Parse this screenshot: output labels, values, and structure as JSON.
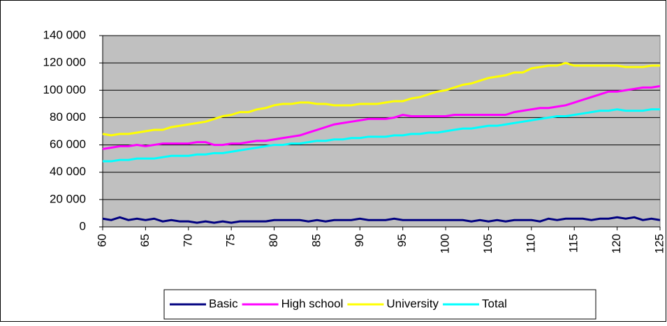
{
  "chart_data": {
    "type": "line",
    "x": [
      60,
      61,
      62,
      63,
      64,
      65,
      66,
      67,
      68,
      69,
      70,
      71,
      72,
      73,
      74,
      75,
      76,
      77,
      78,
      79,
      80,
      81,
      82,
      83,
      84,
      85,
      86,
      87,
      88,
      89,
      90,
      91,
      92,
      93,
      94,
      95,
      96,
      97,
      98,
      99,
      100,
      101,
      102,
      103,
      104,
      105,
      106,
      107,
      108,
      109,
      110,
      111,
      112,
      113,
      114,
      115,
      116,
      117,
      118,
      119,
      120,
      121,
      122,
      123,
      124,
      125
    ],
    "xlim": [
      60,
      125
    ],
    "xticks": [
      60,
      65,
      70,
      75,
      80,
      85,
      90,
      95,
      100,
      105,
      110,
      115,
      120,
      125
    ],
    "ylim": [
      0,
      140000
    ],
    "yticks": [
      0,
      {
        "value": 20000,
        "label": "20 000"
      },
      {
        "value": 40000,
        "label": "40 000"
      },
      {
        "value": 60000,
        "label": "60 000"
      },
      {
        "value": 80000,
        "label": "80 000"
      },
      {
        "value": 100000,
        "label": "100 000"
      },
      {
        "value": 120000,
        "label": "120 000"
      },
      {
        "value": 140000,
        "label": "140 000"
      }
    ],
    "grid": true,
    "legend": "bottom",
    "background": "#c0c0c0",
    "series": [
      {
        "name": "Basic",
        "color": "#000080",
        "values": [
          6000,
          5000,
          7000,
          5000,
          6000,
          5000,
          6000,
          4000,
          5000,
          4000,
          4000,
          3000,
          4000,
          3000,
          4000,
          3000,
          4000,
          4000,
          4000,
          4000,
          5000,
          5000,
          5000,
          5000,
          4000,
          5000,
          4000,
          5000,
          5000,
          5000,
          6000,
          5000,
          5000,
          5000,
          6000,
          5000,
          5000,
          5000,
          5000,
          5000,
          5000,
          5000,
          5000,
          4000,
          5000,
          4000,
          5000,
          4000,
          5000,
          5000,
          5000,
          4000,
          6000,
          5000,
          6000,
          6000,
          6000,
          5000,
          6000,
          6000,
          7000,
          6000,
          7000,
          5000,
          6000,
          5000
        ]
      },
      {
        "name": "High school",
        "color": "#ff00ff",
        "values": [
          57000,
          58000,
          59000,
          59000,
          60000,
          59000,
          60000,
          61000,
          61000,
          61000,
          61000,
          62000,
          62000,
          60000,
          60000,
          61000,
          61000,
          62000,
          63000,
          63000,
          64000,
          65000,
          66000,
          67000,
          69000,
          71000,
          73000,
          75000,
          76000,
          77000,
          78000,
          79000,
          79000,
          79000,
          80000,
          82000,
          81000,
          81000,
          81000,
          81000,
          81000,
          82000,
          82000,
          82000,
          82000,
          82000,
          82000,
          82000,
          84000,
          85000,
          86000,
          87000,
          87000,
          88000,
          89000,
          91000,
          93000,
          95000,
          97000,
          99000,
          99000,
          100000,
          101000,
          102000,
          102000,
          103000
        ]
      },
      {
        "name": "University",
        "color": "#ffff00",
        "values": [
          68000,
          67000,
          68000,
          68000,
          69000,
          70000,
          71000,
          71000,
          73000,
          74000,
          75000,
          76000,
          77000,
          79000,
          81000,
          82000,
          84000,
          84000,
          86000,
          87000,
          89000,
          90000,
          90000,
          91000,
          91000,
          90000,
          90000,
          89000,
          89000,
          89000,
          90000,
          90000,
          90000,
          91000,
          92000,
          92000,
          94000,
          95000,
          97000,
          99000,
          100000,
          102000,
          104000,
          105000,
          107000,
          109000,
          110000,
          111000,
          113000,
          113000,
          116000,
          117000,
          118000,
          118000,
          120000,
          118000,
          118000,
          118000,
          118000,
          118000,
          118000,
          117000,
          117000,
          117000,
          118000,
          118000
        ]
      },
      {
        "name": "Total",
        "color": "#00ffff",
        "values": [
          48000,
          48000,
          49000,
          49000,
          50000,
          50000,
          50000,
          51000,
          52000,
          52000,
          52000,
          53000,
          53000,
          54000,
          54000,
          55000,
          56000,
          57000,
          58000,
          59000,
          60000,
          60000,
          61000,
          61000,
          62000,
          63000,
          63000,
          64000,
          64000,
          65000,
          65000,
          66000,
          66000,
          66000,
          67000,
          67000,
          68000,
          68000,
          69000,
          69000,
          70000,
          71000,
          72000,
          72000,
          73000,
          74000,
          74000,
          75000,
          76000,
          77000,
          78000,
          79000,
          80000,
          81000,
          81000,
          82000,
          83000,
          84000,
          85000,
          85000,
          86000,
          85000,
          85000,
          85000,
          86000,
          86000
        ]
      }
    ]
  }
}
